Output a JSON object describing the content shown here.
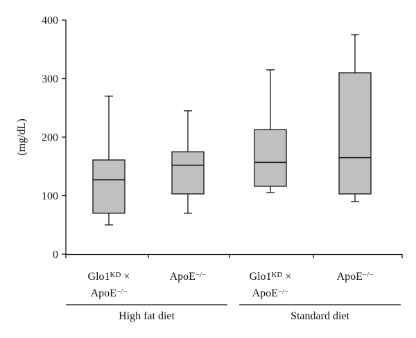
{
  "chart_data": {
    "type": "box",
    "ylabel": "(mg/dL)",
    "ylim": [
      0,
      400
    ],
    "yticks": [
      "0",
      "100",
      "200",
      "300",
      "400"
    ],
    "box_fill": "#c0c0c0",
    "axis_color": "#111111",
    "categories": [
      {
        "line1": {
          "base": "Glo1",
          "sup": "KD",
          "after": " ×"
        },
        "line2": {
          "base": "ApoE",
          "sup": "−/−"
        }
      },
      {
        "line1": {
          "base": "ApoE",
          "sup": "−/−"
        }
      },
      {
        "line1": {
          "base": "Glo1",
          "sup": "KD",
          "after": " ×"
        },
        "line2": {
          "base": "ApoE",
          "sup": "−/−"
        }
      },
      {
        "line1": {
          "base": "ApoE",
          "sup": "−/−"
        }
      }
    ],
    "boxes": [
      {
        "min": 50,
        "q1": 70,
        "median": 127,
        "q3": 161,
        "max": 270
      },
      {
        "min": 70,
        "q1": 103,
        "median": 152,
        "q3": 175,
        "max": 245
      },
      {
        "min": 105,
        "q1": 116,
        "median": 157,
        "q3": 213,
        "max": 315
      },
      {
        "min": 90,
        "q1": 103,
        "median": 165,
        "q3": 310,
        "max": 375
      }
    ],
    "groups": [
      {
        "label": "High fat diet",
        "categories": [
          0,
          1
        ]
      },
      {
        "label": "Standard diet",
        "categories": [
          2,
          3
        ]
      }
    ]
  }
}
